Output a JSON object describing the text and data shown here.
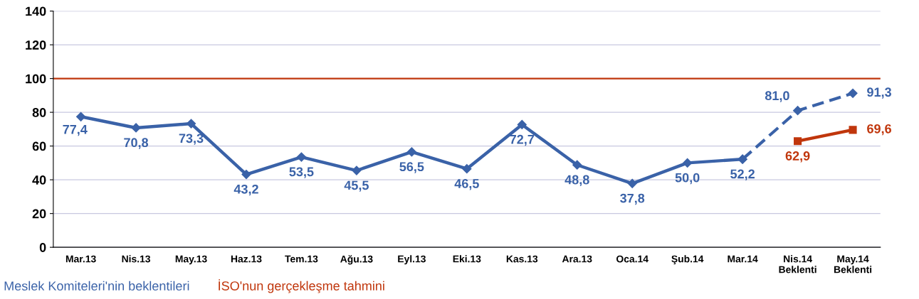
{
  "chart_data": {
    "type": "line",
    "categories": [
      "Mar.13",
      "Nis.13",
      "May.13",
      "Haz.13",
      "Tem.13",
      "Ağu.13",
      "Eyl.13",
      "Eki.13",
      "Kas.13",
      "Ara.13",
      "Oca.14",
      "Şub.14",
      "Mar.14",
      "Nis.14\nBeklenti",
      "May.14\nBeklenti"
    ],
    "series": [
      {
        "name": "Meslek Komiteleri'nin beklentileri",
        "color": "#3a62a8",
        "marker": "diamond",
        "line_style": "solid",
        "values": [
          77.4,
          70.8,
          73.3,
          43.2,
          53.5,
          45.5,
          56.5,
          46.5,
          72.7,
          48.8,
          37.8,
          50.0,
          52.2,
          null,
          null
        ],
        "value_labels": [
          "77,4",
          "70,8",
          "73,3",
          "43,2",
          "53,5",
          "45,5",
          "56,5",
          "46,5",
          "72,7",
          "48,8",
          "37,8",
          "50,0",
          "52,2",
          null,
          null
        ]
      },
      {
        "color": "#3a62a8",
        "marker": "diamond",
        "line_style": "dashed",
        "values": [
          null,
          null,
          null,
          null,
          null,
          null,
          null,
          null,
          null,
          null,
          null,
          null,
          52.2,
          81.0,
          91.3
        ],
        "value_labels": [
          null,
          null,
          null,
          null,
          null,
          null,
          null,
          null,
          null,
          null,
          null,
          null,
          null,
          "81,0",
          "91,3"
        ]
      },
      {
        "name": "İSO'nun gerçekleşme tahmini",
        "color": "#c0360c",
        "marker": "square",
        "line_style": "solid",
        "values": [
          null,
          null,
          null,
          null,
          null,
          null,
          null,
          null,
          null,
          null,
          null,
          null,
          null,
          62.9,
          69.6
        ],
        "value_labels": [
          null,
          null,
          null,
          null,
          null,
          null,
          null,
          null,
          null,
          null,
          null,
          null,
          null,
          "62,9",
          "69,6"
        ]
      }
    ],
    "ylim": [
      0,
      140
    ],
    "yticks": [
      0,
      20,
      40,
      60,
      80,
      100,
      120,
      140
    ],
    "grid": "y",
    "ref_lines": [
      {
        "axis": "y",
        "value": 100,
        "color": "#c0360c"
      }
    ],
    "legend": "bottom left"
  }
}
